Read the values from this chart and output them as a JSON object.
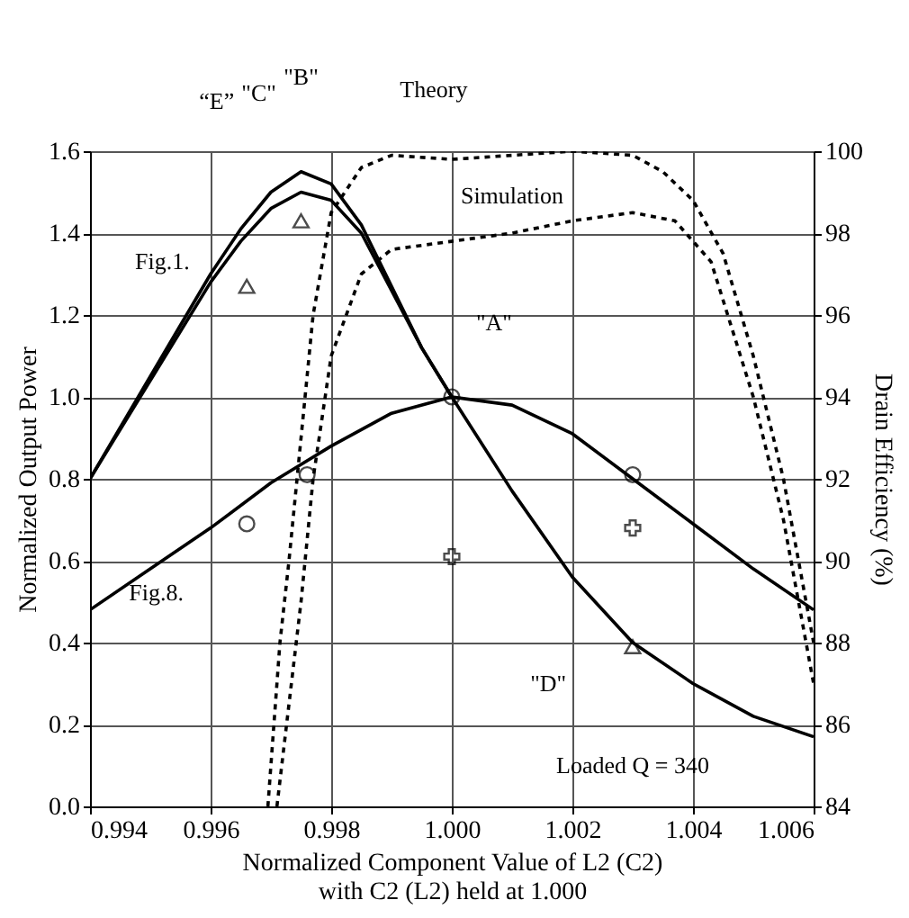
{
  "chart_data": {
    "type": "line",
    "xlabel": "Normalized Component Value of L2 (C2)\nwith C2 (L2) held at 1.000",
    "ylabel": "Normalized Output Power",
    "y2label": "Drain Efficiency (%)",
    "xlim": [
      0.994,
      1.006
    ],
    "xticks": [
      0.994,
      0.996,
      0.998,
      {
        "value": 1.0,
        "label": "1.000"
      },
      1.002,
      1.004,
      1.006
    ],
    "ylim": [
      0,
      1.6
    ],
    "yticks": [
      {
        "value": 0,
        "label": "0.0"
      },
      0.2,
      0.4,
      0.6,
      0.8,
      {
        "value": 1.0,
        "label": "1.0"
      },
      1.2,
      1.4,
      1.6
    ],
    "y2lim": [
      84,
      100
    ],
    "y2ticks": [
      84,
      86,
      88,
      90,
      92,
      94,
      96,
      98,
      100
    ],
    "grid": true,
    "series": [
      {
        "color": "#000000",
        "line_style": "solid",
        "x": [
          0.994,
          0.995,
          0.996,
          0.9965,
          0.997,
          0.9975,
          0.998,
          0.9985,
          0.999,
          0.9995,
          1.0,
          1.001,
          1.002,
          1.003,
          1.004,
          1.005,
          1.006
        ],
        "values": [
          0.8,
          1.05,
          1.3,
          1.41,
          1.5,
          1.55,
          1.52,
          1.42,
          1.27,
          1.12,
          1.0,
          0.77,
          0.56,
          0.4,
          0.3,
          0.22,
          0.17
        ]
      },
      {
        "type": "line",
        "color": "#000000",
        "line_style": "solid",
        "x": [
          0.994,
          0.995,
          0.996,
          0.9965,
          0.997,
          0.9975,
          0.998,
          0.9985,
          0.999,
          0.9995,
          1.0
        ],
        "values": [
          0.8,
          1.04,
          1.28,
          1.38,
          1.46,
          1.5,
          1.48,
          1.4,
          1.26,
          1.12,
          1.0
        ]
      },
      {
        "type": "line",
        "color": "#000000",
        "line_style": "solid",
        "x": [
          0.994,
          0.995,
          0.996,
          0.997,
          0.998,
          0.999,
          1.0,
          1.001,
          1.002,
          1.003,
          1.004,
          1.005,
          1.006
        ],
        "values": [
          0.48,
          0.58,
          0.68,
          0.79,
          0.88,
          0.96,
          1.0,
          0.98,
          0.91,
          0.8,
          0.69,
          0.58,
          0.48
        ]
      },
      {
        "type": "line",
        "axis": "y2",
        "color": "#000000",
        "line_style": "dotted",
        "x": [
          0.99695,
          0.99715,
          0.9973,
          0.9975,
          0.9977,
          0.998,
          0.9985,
          0.999,
          1.0,
          1.001,
          1.002,
          1.003,
          1.0035,
          1.004,
          1.0045,
          1.005,
          1.0055,
          1.006
        ],
        "values": [
          84,
          88,
          90,
          93,
          96,
          98.5,
          99.6,
          99.9,
          99.8,
          99.9,
          100,
          99.9,
          99.5,
          98.8,
          97.5,
          95,
          92,
          88
        ]
      },
      {
        "type": "line",
        "axis": "y2",
        "color": "#000000",
        "line_style": "dotted",
        "x": [
          0.9971,
          0.9973,
          0.9975,
          0.9977,
          0.998,
          0.9985,
          0.999,
          1.0,
          1.001,
          1.002,
          1.003,
          1.0037,
          1.0043,
          1.005,
          1.0055,
          1.006
        ],
        "values": [
          84,
          86.5,
          89,
          92,
          95,
          97,
          97.6,
          97.8,
          98,
          98.3,
          98.5,
          98.3,
          97.3,
          94,
          91,
          87
        ]
      },
      {
        "type": "scatter",
        "marker": "triangle",
        "color": "#000000",
        "x": [
          0.9966,
          0.9975,
          1.003
        ],
        "values": [
          1.27,
          1.43,
          0.39
        ]
      },
      {
        "type": "scatter",
        "marker": "circle",
        "color": "#000000",
        "x": [
          0.9966,
          0.9976,
          1.0,
          1.003
        ],
        "values": [
          0.69,
          0.81,
          1.0,
          0.81
        ]
      },
      {
        "type": "scatter",
        "marker": "cross",
        "color": "#000000",
        "x": [
          1.0,
          1.003
        ],
        "values": [
          0.61,
          0.68
        ]
      }
    ],
    "annotations": [
      "“E”",
      "\"C\"",
      "\"B\"",
      "Theory",
      "Simulation",
      "Fig.1.",
      "Fig.8.",
      "\"A\"",
      "\"D\"",
      "Loaded Q = 340"
    ]
  }
}
